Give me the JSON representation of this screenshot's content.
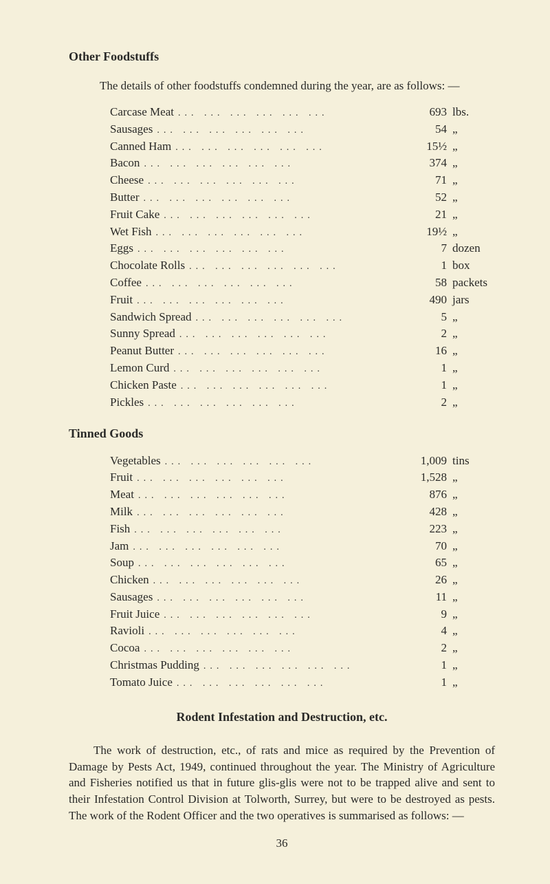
{
  "headings": {
    "other_foodstuffs": "Other Foodstuffs",
    "tinned_goods": "Tinned Goods",
    "rodent": "Rodent Infestation and Destruction, etc."
  },
  "intro": "The details of other foodstuffs condemned during the year, are as follows: —",
  "foodstuffs": [
    {
      "item": "Carcase Meat",
      "qty": "693",
      "unit": "lbs."
    },
    {
      "item": "Sausages",
      "qty": "54",
      "unit": "„"
    },
    {
      "item": "Canned Ham",
      "qty": "15½",
      "unit": "„"
    },
    {
      "item": "Bacon",
      "qty": "374",
      "unit": "„"
    },
    {
      "item": "Cheese",
      "qty": "71",
      "unit": "„"
    },
    {
      "item": "Butter",
      "qty": "52",
      "unit": "„"
    },
    {
      "item": "Fruit Cake",
      "qty": "21",
      "unit": "„"
    },
    {
      "item": "Wet Fish",
      "qty": "19½",
      "unit": "„"
    },
    {
      "item": "Eggs",
      "qty": "7",
      "unit": "dozen"
    },
    {
      "item": "Chocolate Rolls",
      "qty": "1",
      "unit": "box"
    },
    {
      "item": "Coffee",
      "qty": "58",
      "unit": "packets"
    },
    {
      "item": "Fruit",
      "qty": "490",
      "unit": "jars"
    },
    {
      "item": "Sandwich Spread",
      "qty": "5",
      "unit": "„"
    },
    {
      "item": "Sunny Spread",
      "qty": "2",
      "unit": "„"
    },
    {
      "item": "Peanut Butter",
      "qty": "16",
      "unit": "„"
    },
    {
      "item": "Lemon Curd",
      "qty": "1",
      "unit": "„"
    },
    {
      "item": "Chicken Paste",
      "qty": "1",
      "unit": "„"
    },
    {
      "item": "Pickles",
      "qty": "2",
      "unit": "„"
    }
  ],
  "tinned": [
    {
      "item": "Vegetables",
      "qty": "1,009",
      "unit": "tins"
    },
    {
      "item": "Fruit",
      "qty": "1,528",
      "unit": "„"
    },
    {
      "item": "Meat",
      "qty": "876",
      "unit": "„"
    },
    {
      "item": "Milk",
      "qty": "428",
      "unit": "„"
    },
    {
      "item": "Fish",
      "qty": "223",
      "unit": "„"
    },
    {
      "item": "Jam",
      "qty": "70",
      "unit": "„"
    },
    {
      "item": "Soup",
      "qty": "65",
      "unit": "„"
    },
    {
      "item": "Chicken",
      "qty": "26",
      "unit": "„"
    },
    {
      "item": "Sausages",
      "qty": "11",
      "unit": "„"
    },
    {
      "item": "Fruit Juice",
      "qty": "9",
      "unit": "„"
    },
    {
      "item": "Ravioli",
      "qty": "4",
      "unit": "„"
    },
    {
      "item": "Cocoa",
      "qty": "2",
      "unit": "„"
    },
    {
      "item": "Christmas Pudding",
      "qty": "1",
      "unit": "„"
    },
    {
      "item": "Tomato Juice",
      "qty": "1",
      "unit": "„"
    }
  ],
  "paragraph": "The work of destruction, etc., of rats and mice as required by the Prevention of Damage by Pests Act, 1949, continued throughout the year. The Ministry of Agriculture and Fisheries notified us that in future glis-glis were not to be trapped alive and sent to their Infestation Control Division at Tolworth, Surrey, but were to be destroyed as pests. The work of the Rodent Officer and the two operatives is summarised as follows: —",
  "page_number": "36",
  "dots": "...   ...   ...   ...   ...   ..."
}
